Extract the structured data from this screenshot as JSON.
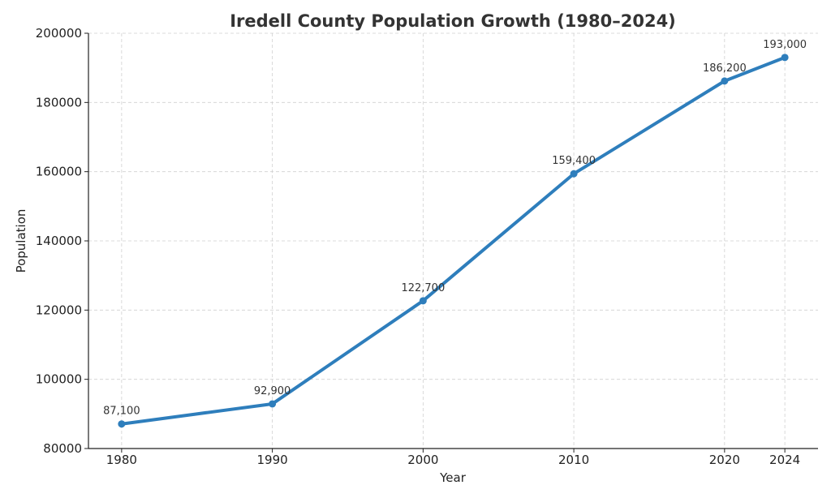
{
  "chart_data": {
    "type": "line",
    "title": "Iredell County Population Growth (1980–2024)",
    "xlabel": "Year",
    "ylabel": "Population",
    "x": [
      1980,
      1990,
      2000,
      2010,
      2020,
      2024
    ],
    "x_tick_labels": [
      "1980",
      "1990",
      "2000",
      "2010",
      "2020",
      "2024"
    ],
    "series": [
      {
        "values": [
          87100,
          92900,
          122700,
          159400,
          186200,
          193000
        ]
      }
    ],
    "data_labels": [
      "87,100",
      "92,900",
      "122,700",
      "159,400",
      "186,200",
      "193,000"
    ],
    "y_ticks": [
      80000,
      100000,
      120000,
      140000,
      160000,
      180000,
      200000
    ],
    "y_tick_labels": [
      "80000",
      "100000",
      "120000",
      "140000",
      "160000",
      "180000",
      "200000"
    ],
    "xlim": [
      1977.8,
      2026.2
    ],
    "ylim": [
      80000,
      200000
    ],
    "grid": true,
    "markers": true,
    "line_color": "#2e7ebc"
  }
}
